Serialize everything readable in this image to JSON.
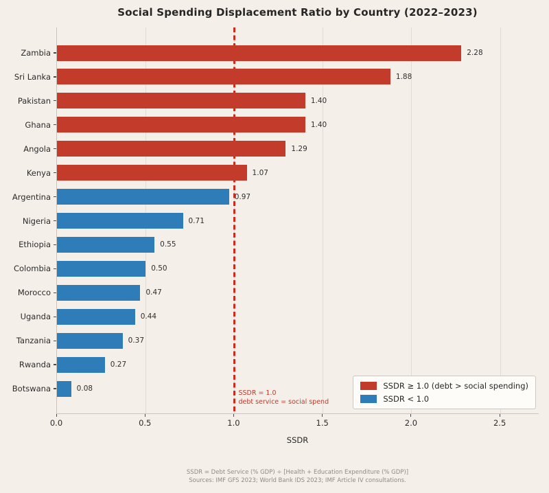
{
  "chart_data": {
    "type": "bar",
    "orientation": "horizontal",
    "title": "Social Spending Displacement Ratio by Country (2022–2023)",
    "xlabel": "SSDR",
    "xlim": [
      0,
      2.72
    ],
    "x_ticks": [
      0.0,
      0.5,
      1.0,
      1.5,
      2.0,
      2.5
    ],
    "x_tick_labels": [
      "0.0",
      "0.5",
      "1.0",
      "1.5",
      "2.0",
      "2.5"
    ],
    "grid": "vertical",
    "categories": [
      "Zambia",
      "Sri Lanka",
      "Pakistan",
      "Ghana",
      "Angola",
      "Kenya",
      "Argentina",
      "Nigeria",
      "Ethiopia",
      "Colombia",
      "Morocco",
      "Uganda",
      "Tanzania",
      "Rwanda",
      "Botswana"
    ],
    "values": [
      2.28,
      1.88,
      1.4,
      1.4,
      1.29,
      1.07,
      0.97,
      0.71,
      0.55,
      0.5,
      0.47,
      0.44,
      0.37,
      0.27,
      0.08
    ],
    "value_labels": [
      "2.28",
      "1.88",
      "1.40",
      "1.40",
      "1.29",
      "1.07",
      "0.97",
      "0.71",
      "0.55",
      "0.50",
      "0.47",
      "0.44",
      "0.37",
      "0.27",
      "0.08"
    ],
    "threshold": 1.0,
    "refline": {
      "x": 1.0,
      "label_line1": "SSDR = 1.0",
      "label_line2": "debt service = social spend"
    },
    "legend": {
      "position": "lower right",
      "items": [
        {
          "label": "SSDR ≥ 1.0 (debt > social spending)",
          "color": "#c23b2b"
        },
        {
          "label": "SSDR < 1.0",
          "color": "#2e7cb8"
        }
      ]
    },
    "colors": {
      "bar_above": "#c23b2b",
      "bar_below": "#2e7cb8",
      "refline": "#cf2b1d",
      "annotation": "#c0392b",
      "background": "#f4efe9",
      "gridline": "#e1dcd5",
      "spine": "#c9c4be"
    }
  },
  "footer": {
    "line1": "SSDR = Debt Service (% GDP) ÷ [Health + Education Expenditure (% GDP)]",
    "line2": "Sources: IMF GFS 2023; World Bank IDS 2023; IMF Article IV consultations."
  }
}
